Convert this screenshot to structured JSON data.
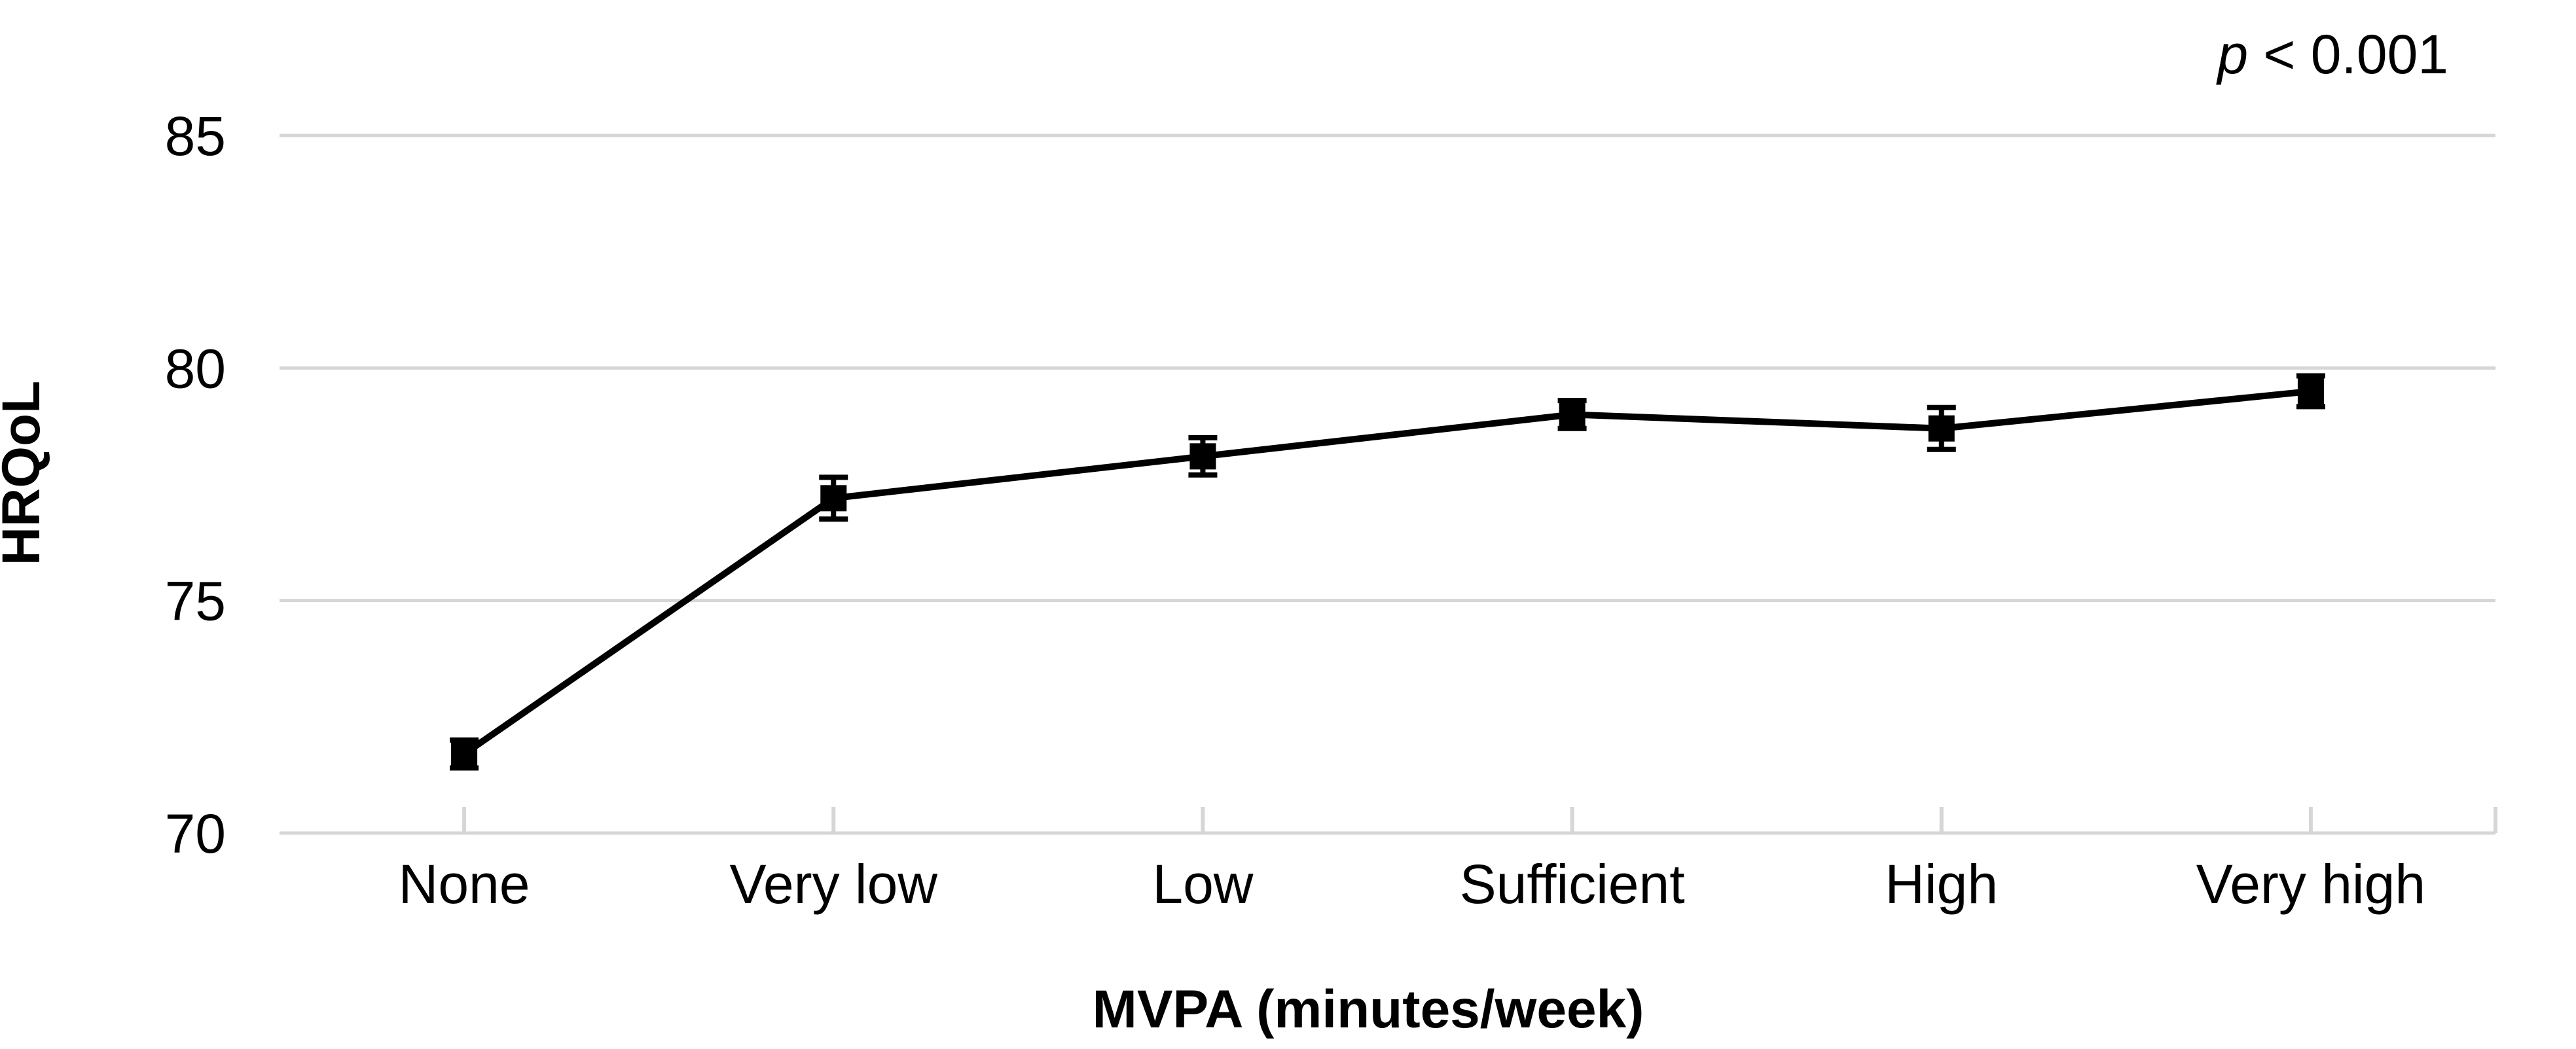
{
  "chart_data": {
    "type": "line",
    "title": "",
    "xlabel": "MVPA (minutes/week)",
    "ylabel": "HRQoL",
    "annotation": {
      "italic_part": "p",
      "rest": " < 0.001"
    },
    "categories": [
      "None",
      "Very low",
      "Low",
      "Sufficient",
      "High",
      "Very high"
    ],
    "series": [
      {
        "name": "HRQoL",
        "values": [
          71.7,
          77.2,
          78.1,
          79.0,
          78.7,
          79.5
        ],
        "errors": [
          0.3,
          0.45,
          0.4,
          0.3,
          0.45,
          0.33
        ]
      }
    ],
    "ylim": [
      70,
      86.5
    ],
    "yticks": [
      70,
      75,
      80,
      85
    ],
    "grid": true,
    "legend_position": "none",
    "marker": "square",
    "colors": {
      "line": "#000000",
      "marker": "#000000",
      "error_bar": "#000000",
      "grid": "#d6d6d6",
      "axis": "#d6d6d6",
      "text": "#000000"
    }
  }
}
